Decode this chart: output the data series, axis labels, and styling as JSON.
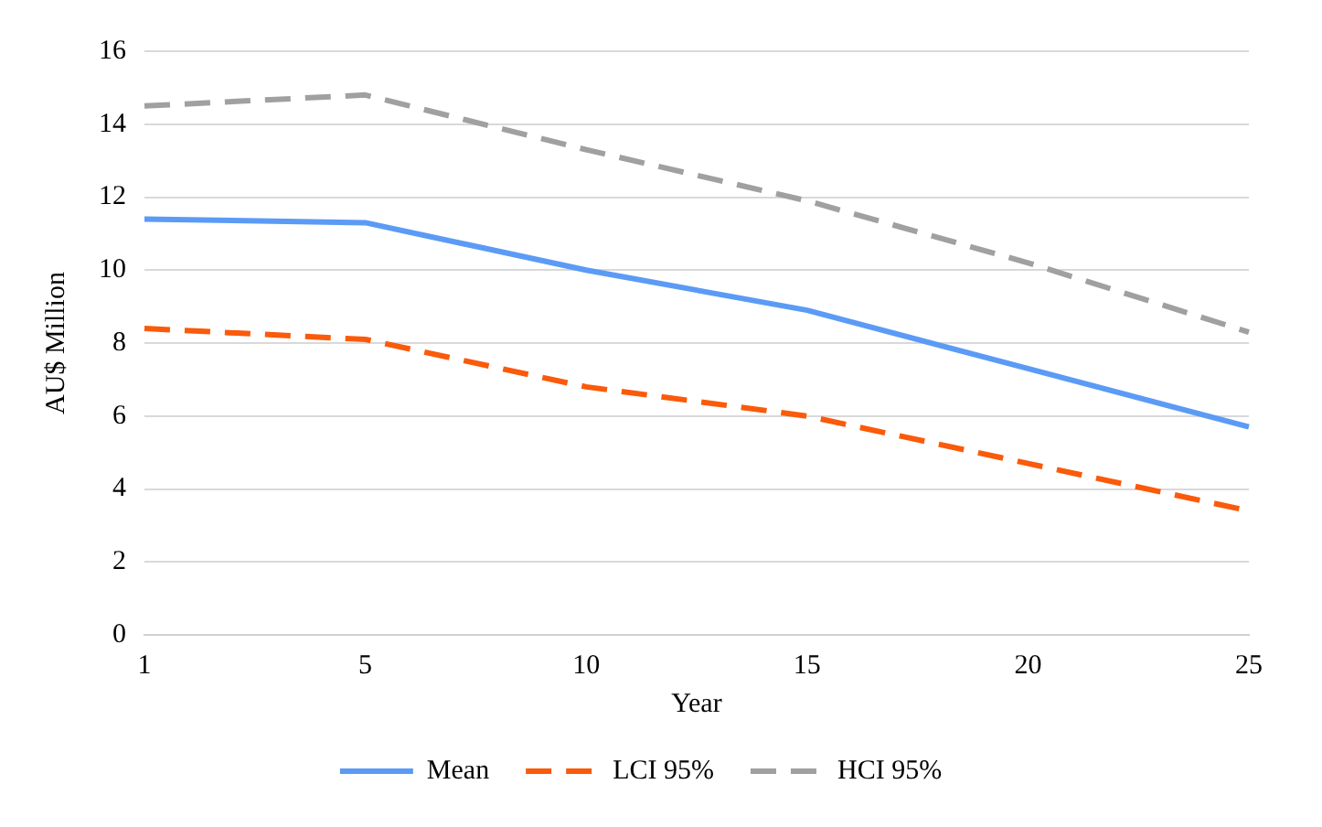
{
  "chart_data": {
    "type": "line",
    "xlabel": "Year",
    "ylabel": "AU$ Million",
    "categories": [
      "1",
      "5",
      "10",
      "15",
      "20",
      "25"
    ],
    "series": [
      {
        "name": "Mean",
        "color": "#5b9bf5",
        "line_style": "solid",
        "values": [
          11.4,
          11.3,
          10.0,
          8.9,
          7.3,
          5.7
        ]
      },
      {
        "name": "LCI 95%",
        "color": "#fa5a0a",
        "line_style": "dashed",
        "values": [
          8.4,
          8.1,
          6.8,
          6.0,
          4.7,
          3.4
        ]
      },
      {
        "name": "HCI 95%",
        "color": "#a0a0a0",
        "line_style": "dashed",
        "values": [
          14.5,
          14.8,
          13.3,
          11.9,
          10.2,
          8.3
        ]
      }
    ],
    "ylim": [
      0,
      16
    ],
    "yticks": [
      0,
      2,
      4,
      6,
      8,
      10,
      12,
      14,
      16
    ],
    "grid": "y",
    "legend": "bottom",
    "marker": "none"
  }
}
